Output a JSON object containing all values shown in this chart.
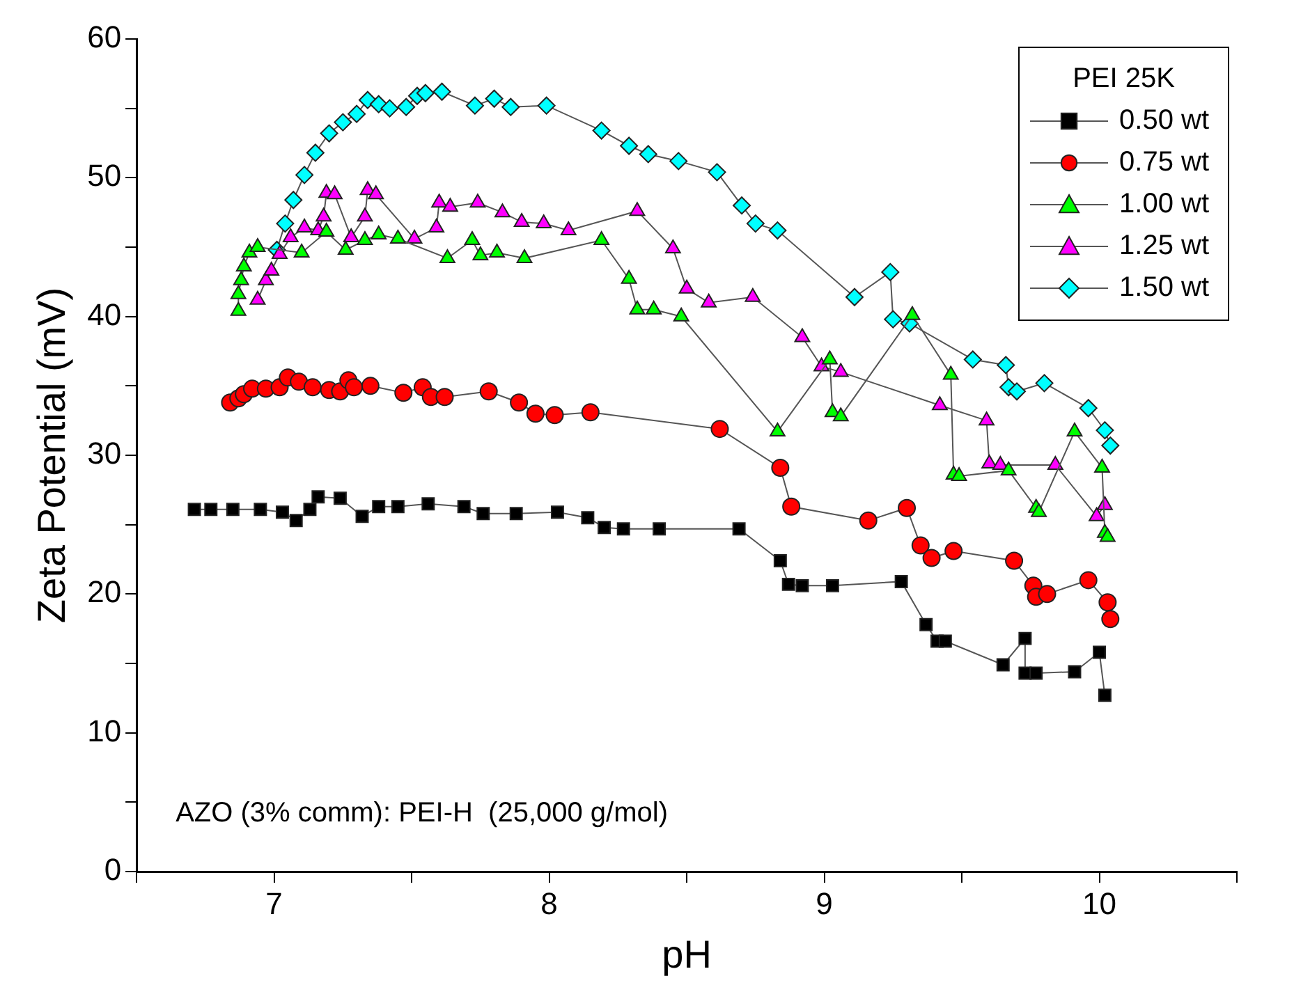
{
  "chart_data": {
    "type": "line",
    "xlabel": "pH",
    "ylabel": "Zeta Potential (mV)",
    "legend_title": "PEI 25K",
    "legend": "top right",
    "grid": false,
    "xlim": [
      6.5,
      10.5
    ],
    "xticks": [
      {
        "value": 6.5,
        "label": null
      },
      7,
      {
        "value": 7.5,
        "label": null
      },
      8,
      {
        "value": 8.5,
        "label": null
      },
      9,
      {
        "value": 9.5,
        "label": null
      },
      10,
      {
        "value": 10.5,
        "label": null
      }
    ],
    "ylim": [
      0,
      60
    ],
    "yticks": [
      0,
      {
        "value": 5,
        "label": null
      },
      10,
      {
        "value": 15,
        "label": null
      },
      20,
      {
        "value": 25,
        "label": null
      },
      30,
      {
        "value": 35,
        "label": null
      },
      40,
      {
        "value": 45,
        "label": null
      },
      50,
      {
        "value": 55,
        "label": null
      },
      60
    ],
    "annotations": [
      "AZO (3% comm): PEI-H  (25,000 g/mol)"
    ],
    "series": [
      {
        "name": "0.50 wt",
        "color": "#000000",
        "marker": "square",
        "x": [
          6.71,
          6.77,
          6.85,
          6.95,
          7.03,
          7.08,
          7.13,
          7.16,
          7.24,
          7.32,
          7.38,
          7.45,
          7.56,
          7.69,
          7.76,
          7.88,
          8.03,
          8.14,
          8.2,
          8.27,
          8.4,
          8.69,
          8.84,
          8.87,
          8.92,
          9.03,
          9.28,
          9.37,
          9.41,
          9.44,
          9.65,
          9.73,
          9.73,
          9.77,
          9.91,
          10.0,
          10.02
        ],
        "values": [
          26.1,
          26.1,
          26.1,
          26.1,
          25.9,
          25.3,
          26.1,
          27.0,
          26.9,
          25.6,
          26.3,
          26.3,
          26.5,
          26.3,
          25.8,
          25.8,
          25.9,
          25.5,
          24.8,
          24.7,
          24.7,
          24.7,
          22.4,
          20.7,
          20.6,
          20.6,
          20.9,
          17.8,
          16.6,
          16.6,
          14.9,
          16.8,
          14.3,
          14.3,
          14.4,
          15.8,
          12.7
        ]
      },
      {
        "name": "0.75 wt",
        "color": "#ff0000",
        "marker": "circle",
        "x": [
          6.84,
          6.87,
          6.89,
          6.92,
          6.97,
          7.02,
          7.05,
          7.09,
          7.14,
          7.2,
          7.24,
          7.27,
          7.29,
          7.35,
          7.47,
          7.54,
          7.57,
          7.62,
          7.78,
          7.89,
          7.95,
          8.02,
          8.15,
          8.62,
          8.84,
          8.88,
          9.16,
          9.3,
          9.35,
          9.39,
          9.47,
          9.69,
          9.76,
          9.77,
          9.81,
          9.96,
          10.03,
          10.04
        ],
        "values": [
          33.8,
          34.1,
          34.4,
          34.8,
          34.8,
          34.9,
          35.6,
          35.3,
          34.9,
          34.7,
          34.6,
          35.4,
          34.9,
          35.0,
          34.5,
          34.9,
          34.2,
          34.2,
          34.6,
          33.8,
          33.0,
          32.9,
          33.1,
          31.9,
          29.1,
          26.3,
          25.3,
          26.2,
          23.5,
          22.6,
          23.1,
          22.4,
          20.6,
          19.8,
          20.0,
          21.0,
          19.4,
          18.2
        ]
      },
      {
        "name": "1.00 wt",
        "color": "#00ff00",
        "marker": "triangle",
        "x": [
          6.87,
          6.87,
          6.88,
          6.89,
          6.91,
          6.94,
          7.1,
          7.19,
          7.26,
          7.33,
          7.38,
          7.45,
          7.63,
          7.72,
          7.75,
          7.81,
          7.91,
          8.19,
          8.29,
          8.32,
          8.38,
          8.48,
          8.83,
          9.02,
          9.03,
          9.06,
          9.32,
          9.46,
          9.47,
          9.49,
          9.67,
          9.77,
          9.78,
          9.91,
          10.01,
          10.02,
          10.03
        ],
        "values": [
          40.4,
          41.6,
          42.6,
          43.6,
          44.6,
          45.0,
          44.6,
          46.1,
          44.8,
          45.5,
          45.9,
          45.6,
          44.2,
          45.5,
          44.4,
          44.6,
          44.2,
          45.5,
          42.7,
          40.5,
          40.5,
          40.0,
          31.7,
          36.9,
          33.1,
          32.8,
          40.1,
          35.8,
          28.6,
          28.5,
          28.9,
          26.2,
          25.9,
          31.7,
          29.1,
          24.4,
          24.1
        ]
      },
      {
        "name": "1.25 wt",
        "color": "#ff00ff",
        "marker": "triangle",
        "x": [
          6.94,
          6.97,
          6.99,
          7.02,
          7.06,
          7.11,
          7.16,
          7.18,
          7.19,
          7.22,
          7.28,
          7.33,
          7.34,
          7.37,
          7.51,
          7.59,
          7.6,
          7.64,
          7.74,
          7.83,
          7.9,
          7.98,
          8.07,
          8.32,
          8.45,
          8.5,
          8.58,
          8.74,
          8.92,
          8.99,
          9.06,
          9.42,
          9.59,
          9.6,
          9.64,
          9.84,
          9.99,
          10.02
        ],
        "values": [
          41.2,
          42.6,
          43.3,
          44.5,
          45.7,
          46.4,
          46.2,
          47.2,
          48.9,
          48.8,
          45.7,
          47.2,
          49.1,
          48.8,
          45.6,
          46.4,
          48.2,
          47.9,
          48.2,
          47.5,
          46.8,
          46.7,
          46.2,
          47.6,
          44.9,
          42.0,
          41.0,
          41.4,
          38.5,
          36.4,
          36.0,
          33.6,
          32.5,
          29.4,
          29.3,
          29.3,
          25.6,
          26.4
        ]
      },
      {
        "name": "1.50 wt",
        "color": "#00ffff",
        "marker": "diamond",
        "x": [
          7.01,
          7.04,
          7.07,
          7.11,
          7.15,
          7.2,
          7.25,
          7.3,
          7.34,
          7.38,
          7.42,
          7.48,
          7.52,
          7.55,
          7.61,
          7.73,
          7.8,
          7.86,
          7.99,
          8.19,
          8.29,
          8.36,
          8.47,
          8.61,
          8.7,
          8.75,
          8.83,
          9.11,
          9.24,
          9.25,
          9.31,
          9.54,
          9.66,
          9.67,
          9.7,
          9.8,
          9.96,
          10.02,
          10.04
        ],
        "values": [
          44.8,
          46.7,
          48.4,
          50.2,
          51.8,
          53.2,
          54.0,
          54.6,
          55.6,
          55.3,
          55.0,
          55.1,
          55.9,
          56.1,
          56.2,
          55.2,
          55.7,
          55.1,
          55.2,
          53.4,
          52.3,
          51.7,
          51.2,
          50.4,
          48.0,
          46.7,
          46.2,
          41.4,
          43.2,
          39.8,
          39.5,
          36.9,
          36.5,
          34.9,
          34.6,
          35.2,
          33.4,
          31.8,
          30.7
        ]
      }
    ]
  }
}
